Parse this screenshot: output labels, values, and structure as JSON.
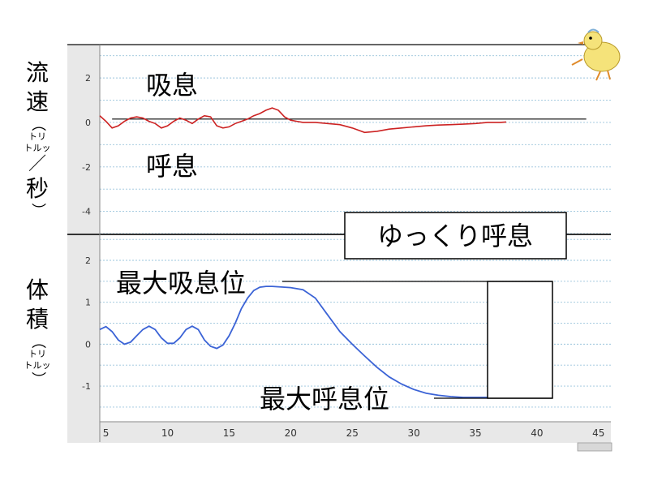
{
  "chart_data": [
    {
      "type": "line",
      "ylabel": {
        "main1": "流速",
        "open": "（",
        "unit1": "トリ",
        "unit2": "トルッ",
        "slash": "／",
        "main2": "秒",
        "close": "）"
      },
      "yticks": [
        "2",
        "0",
        "-2",
        "-4"
      ],
      "ylim": [
        -5,
        3.5
      ],
      "xlim": [
        4.5,
        46
      ],
      "grid": true,
      "series": [
        {
          "color": "#cc2222",
          "x": [
            4.5,
            5,
            5.5,
            6,
            6.5,
            7,
            7.5,
            8,
            8.5,
            9,
            9.5,
            10,
            10.5,
            11,
            11.5,
            12,
            12.5,
            13,
            13.5,
            14,
            14.5,
            15,
            15.5,
            16,
            16.5,
            17,
            17.5,
            18,
            18.5,
            19,
            19.5,
            20,
            20.5,
            21,
            22,
            23,
            24,
            25,
            26,
            27,
            28,
            29,
            30,
            31,
            32,
            33,
            34,
            35,
            36,
            37,
            37.5
          ],
          "y": [
            0.3,
            0.05,
            -0.25,
            -0.15,
            0.05,
            0.2,
            0.25,
            0.2,
            0.05,
            -0.05,
            -0.25,
            -0.15,
            0.05,
            0.2,
            0.1,
            -0.05,
            0.15,
            0.3,
            0.25,
            -0.15,
            -0.25,
            -0.2,
            -0.05,
            0.05,
            0.15,
            0.3,
            0.4,
            0.55,
            0.65,
            0.55,
            0.25,
            0.1,
            0.05,
            0.0,
            0.0,
            -0.05,
            -0.1,
            -0.25,
            -0.45,
            -0.4,
            -0.3,
            -0.25,
            -0.2,
            -0.15,
            -0.12,
            -0.1,
            -0.08,
            -0.05,
            0.0,
            0.0,
            0.02
          ]
        }
      ],
      "reference_line": {
        "y": 0.15,
        "x": [
          5.5,
          44
        ]
      },
      "annotations": {
        "inhale": "吸息",
        "exhale": "呼息"
      }
    },
    {
      "type": "line",
      "ylabel": {
        "main1": "体積",
        "open": "（",
        "unit1": "トリ",
        "unit2": "トルッ",
        "close": "）"
      },
      "yticks": [
        "2",
        "1",
        "0",
        "-1"
      ],
      "ylim": [
        -1.85,
        2.6
      ],
      "xlim": [
        4.5,
        46
      ],
      "xticks": [
        "5",
        "10",
        "15",
        "20",
        "25",
        "30",
        "35",
        "40",
        "45"
      ],
      "grid": true,
      "series": [
        {
          "color": "#3b63d6",
          "x": [
            4.5,
            5,
            5.5,
            6,
            6.5,
            7,
            7.5,
            8,
            8.5,
            9,
            9.5,
            10,
            10.5,
            11,
            11.5,
            12,
            12.5,
            13,
            13.5,
            14,
            14.5,
            15,
            15.5,
            16,
            16.5,
            17,
            17.5,
            18,
            18.5,
            19,
            19.5,
            20,
            21,
            22,
            23,
            24,
            25,
            26,
            27,
            28,
            29,
            30,
            31,
            32,
            33,
            34,
            35,
            36,
            37,
            37.5
          ],
          "y": [
            0.35,
            0.42,
            0.3,
            0.1,
            0.0,
            0.05,
            0.2,
            0.35,
            0.43,
            0.35,
            0.15,
            0.02,
            0.02,
            0.15,
            0.35,
            0.43,
            0.35,
            0.1,
            -0.05,
            -0.1,
            -0.02,
            0.2,
            0.5,
            0.85,
            1.1,
            1.28,
            1.36,
            1.38,
            1.38,
            1.37,
            1.36,
            1.35,
            1.3,
            1.1,
            0.7,
            0.3,
            0.0,
            -0.28,
            -0.55,
            -0.78,
            -0.95,
            -1.08,
            -1.17,
            -1.22,
            -1.25,
            -1.27,
            -1.27,
            -1.27,
            -1.27,
            -1.27
          ]
        }
      ],
      "annotations": {
        "max_inhale": "最大吸息位",
        "max_exhale": "最大呼息位",
        "title": "ゆっくり呼息"
      }
    }
  ]
}
